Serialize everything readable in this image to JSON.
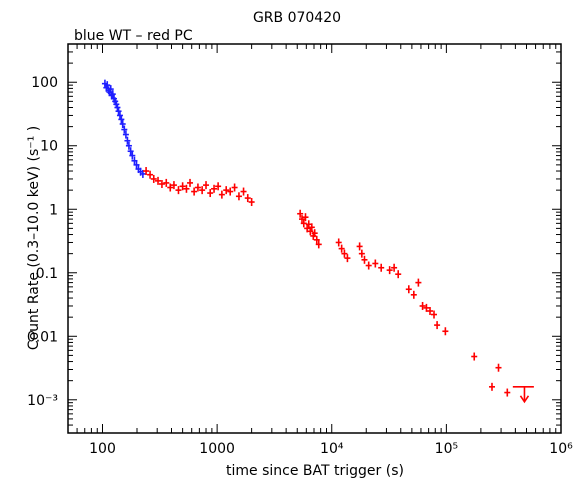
{
  "chart_data": {
    "type": "scatter",
    "title": "GRB 070420",
    "subtitle": "blue WT – red PC",
    "xlabel": "time since BAT trigger (s)",
    "ylabel": "Count Rate (0.3–10.0 keV) (s⁻¹ )",
    "x_scale": "log",
    "y_scale": "log",
    "xlim": [
      50,
      1000000
    ],
    "ylim": [
      0.0003,
      400
    ],
    "x_ticks": [
      {
        "value": 100,
        "label": "100"
      },
      {
        "value": 1000,
        "label": "1000"
      },
      {
        "value": 10000,
        "label": "10⁴"
      },
      {
        "value": 100000,
        "label": "10⁵"
      },
      {
        "value": 1000000,
        "label": "10⁶"
      }
    ],
    "y_ticks": [
      {
        "value": 0.001,
        "label": "10⁻³"
      },
      {
        "value": 0.01,
        "label": "0.01"
      },
      {
        "value": 0.1,
        "label": "0.1"
      },
      {
        "value": 1,
        "label": "1"
      },
      {
        "value": 10,
        "label": "10"
      },
      {
        "value": 100,
        "label": "100"
      }
    ],
    "series": [
      {
        "name": "WT",
        "color": "#1f1fff",
        "points": [
          [
            105,
            95
          ],
          [
            108,
            82
          ],
          [
            110,
            90
          ],
          [
            113,
            75
          ],
          [
            115,
            70
          ],
          [
            118,
            78
          ],
          [
            120,
            62
          ],
          [
            123,
            65
          ],
          [
            126,
            55
          ],
          [
            129,
            50
          ],
          [
            132,
            45
          ],
          [
            135,
            40
          ],
          [
            138,
            35
          ],
          [
            142,
            30
          ],
          [
            146,
            26
          ],
          [
            150,
            22
          ],
          [
            155,
            18
          ],
          [
            160,
            15
          ],
          [
            165,
            12
          ],
          [
            170,
            10
          ],
          [
            176,
            8.2
          ],
          [
            182,
            7.0
          ],
          [
            190,
            5.8
          ],
          [
            198,
            5.0
          ],
          [
            206,
            4.3
          ],
          [
            215,
            3.9
          ],
          [
            225,
            3.6
          ]
        ]
      },
      {
        "name": "PC",
        "color": "#ff0000",
        "points": [
          [
            240,
            4.0
          ],
          [
            260,
            3.5
          ],
          [
            280,
            3.0
          ],
          [
            305,
            2.8
          ],
          [
            330,
            2.5
          ],
          [
            360,
            2.6
          ],
          [
            390,
            2.2
          ],
          [
            420,
            2.4
          ],
          [
            460,
            2.0
          ],
          [
            500,
            2.3
          ],
          [
            540,
            2.1
          ],
          [
            580,
            2.6
          ],
          [
            630,
            1.9
          ],
          [
            680,
            2.2
          ],
          [
            740,
            2.0
          ],
          [
            800,
            2.4
          ],
          [
            870,
            1.8
          ],
          [
            940,
            2.1
          ],
          [
            1020,
            2.3
          ],
          [
            1100,
            1.7
          ],
          [
            1200,
            2.0
          ],
          [
            1300,
            1.9
          ],
          [
            1420,
            2.2
          ],
          [
            1550,
            1.6
          ],
          [
            1700,
            1.9
          ],
          [
            1850,
            1.5
          ],
          [
            2000,
            1.3
          ],
          [
            5300,
            0.85
          ],
          [
            5500,
            0.7
          ],
          [
            5700,
            0.6
          ],
          [
            5900,
            0.75
          ],
          [
            6100,
            0.5
          ],
          [
            6300,
            0.58
          ],
          [
            6500,
            0.45
          ],
          [
            6700,
            0.52
          ],
          [
            6900,
            0.38
          ],
          [
            7100,
            0.42
          ],
          [
            7400,
            0.33
          ],
          [
            7700,
            0.28
          ],
          [
            11500,
            0.3
          ],
          [
            12200,
            0.24
          ],
          [
            12900,
            0.2
          ],
          [
            13700,
            0.17
          ],
          [
            17500,
            0.26
          ],
          [
            18300,
            0.2
          ],
          [
            19300,
            0.16
          ],
          [
            21000,
            0.13
          ],
          [
            24000,
            0.14
          ],
          [
            27000,
            0.12
          ],
          [
            32000,
            0.11
          ],
          [
            35000,
            0.12
          ],
          [
            38000,
            0.095
          ],
          [
            47000,
            0.055
          ],
          [
            52000,
            0.045
          ],
          [
            57000,
            0.07
          ],
          [
            62000,
            0.03
          ],
          [
            67000,
            0.028
          ],
          [
            72000,
            0.025
          ],
          [
            78000,
            0.022
          ],
          [
            83000,
            0.015
          ],
          [
            98000,
            0.012
          ],
          [
            175000,
            0.0048
          ],
          [
            250000,
            0.0016
          ],
          [
            285000,
            0.0032
          ],
          [
            340000,
            0.0013
          ]
        ],
        "upper_limit": {
          "x": 480000,
          "y": 0.0016,
          "x_low": 380000,
          "x_high": 580000
        }
      }
    ]
  }
}
